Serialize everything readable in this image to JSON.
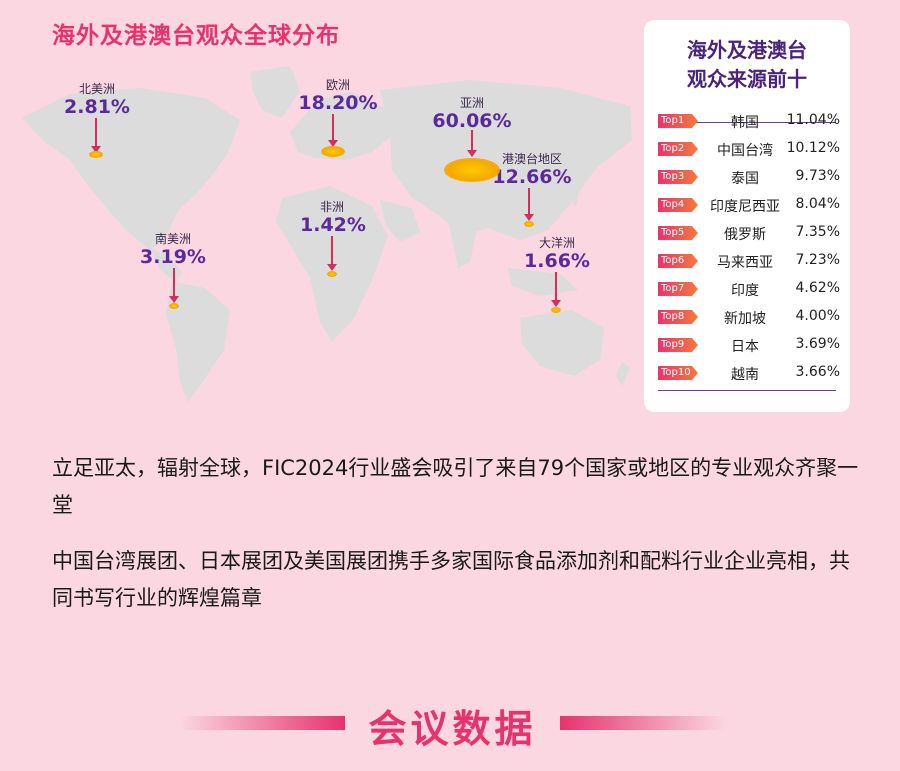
{
  "page_title": "海外及港澳台观众全球分布",
  "colors": {
    "accent": "#e6336f",
    "purple": "#5a2a9a",
    "background": "#fad7e1",
    "map_land": "#dcdcdc",
    "marker": "#f5a800"
  },
  "map_regions": [
    {
      "name": "北美洲",
      "pct": "2.81%"
    },
    {
      "name": "欧洲",
      "pct": "18.20%"
    },
    {
      "name": "亚洲",
      "pct": "60.06%"
    },
    {
      "name": "港澳台地区",
      "pct": "12.66%"
    },
    {
      "name": "非洲",
      "pct": "1.42%"
    },
    {
      "name": "南美洲",
      "pct": "3.19%"
    },
    {
      "name": "大洋洲",
      "pct": "1.66%"
    }
  ],
  "top10": {
    "title_line1": "海外及港澳台",
    "title_line2": "观众来源前十",
    "rows": [
      {
        "rank": "Top1",
        "country": "韩国",
        "pct": "11.04%"
      },
      {
        "rank": "Top2",
        "country": "中国台湾",
        "pct": "10.12%"
      },
      {
        "rank": "Top3",
        "country": "泰国",
        "pct": "9.73%"
      },
      {
        "rank": "Top4",
        "country": "印度尼西亚",
        "pct": "8.04%"
      },
      {
        "rank": "Top5",
        "country": "俄罗斯",
        "pct": "7.35%"
      },
      {
        "rank": "Top6",
        "country": "马来西亚",
        "pct": "7.23%"
      },
      {
        "rank": "Top7",
        "country": "印度",
        "pct": "4.62%"
      },
      {
        "rank": "Top8",
        "country": "新加坡",
        "pct": "4.00%"
      },
      {
        "rank": "Top9",
        "country": "日本",
        "pct": "3.69%"
      },
      {
        "rank": "Top10",
        "country": "越南",
        "pct": "3.66%"
      }
    ]
  },
  "paragraph1": "立足亚太，辐射全球，FIC2024行业盛会吸引了来自79个国家或地区的专业观众齐聚一堂",
  "paragraph2": "中国台湾展团、日本展团及美国展团携手多家国际食品添加剂和配料行业企业亮相，共同书写行业的辉煌篇章",
  "section_heading": "会议数据"
}
